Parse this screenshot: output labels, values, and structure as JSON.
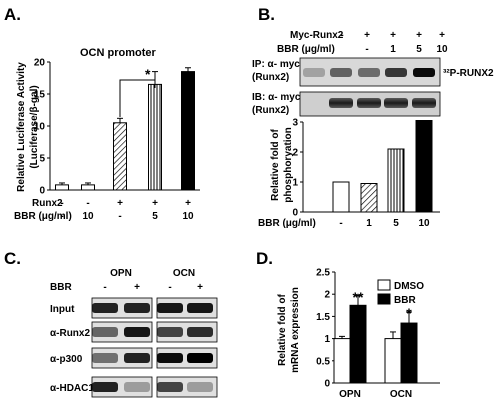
{
  "panels": {
    "A": {
      "label": "A.",
      "title": "OCN promoter",
      "ylabel_1": "Relative Luciferase Activity",
      "ylabel_2": "(Luciferase/β-gal)",
      "significance": "*",
      "row1_name": "Runx2",
      "row2_name": "BBR (μg/ml)",
      "row1_values": [
        "-",
        "-",
        "+",
        "+",
        "+"
      ],
      "row2_values": [
        "-",
        "10",
        "-",
        "5",
        "10"
      ]
    },
    "B": {
      "label": "B.",
      "header_rows": [
        {
          "name": "Myc-Runx2",
          "values": [
            "-",
            "+",
            "+",
            "+",
            "+"
          ]
        },
        {
          "name": "BBR (μg/ml)",
          "values": [
            "",
            "-",
            "1",
            "5",
            "10"
          ]
        }
      ],
      "blot1_label_1": "IP: α- myc",
      "blot1_label_2": "(Runx2)",
      "blot1_side_label": "³²P-RUNX2",
      "blot2_label_1": "IB: α- myc",
      "blot2_label_2": "(Runx2)",
      "ylabel_1": "Relative fold of",
      "ylabel_2": "phosphoryation",
      "xlabel_name": "BBR (μg/ml)",
      "x_values": [
        "-",
        "1",
        "5",
        "10"
      ]
    },
    "C": {
      "label": "C.",
      "col_groups": [
        "OPN",
        "OCN"
      ],
      "bbr_name": "BBR",
      "bbr_values": [
        "-",
        "+",
        "-",
        "+"
      ],
      "row_labels": [
        "Input",
        "α-Runx2",
        "α-p300",
        "α-HDAC1"
      ]
    },
    "D": {
      "label": "D.",
      "ylabel_1": "Relative fold of",
      "ylabel_2": "mRNA expression",
      "legend": [
        "DMSO",
        "BBR"
      ],
      "significance": [
        "**",
        "*"
      ],
      "categories": [
        "OPN",
        "OCN"
      ]
    }
  },
  "chart_data": [
    {
      "type": "bar",
      "panel": "A",
      "title": "OCN promoter",
      "ylabel": "Relative Luciferase Activity (Luciferase/β-gal)",
      "categories": [
        "-/-",
        "-/10",
        "+/-",
        "+/5",
        "+/10"
      ],
      "values": [
        0.8,
        0.8,
        10.5,
        16.5,
        18.5
      ],
      "errors": [
        0.3,
        0.3,
        0.7,
        2.0,
        0.6
      ],
      "fills": [
        "white",
        "white",
        "hatched",
        "vertical",
        "black"
      ],
      "ylim": [
        0,
        20
      ],
      "yticks": [
        0,
        5,
        10,
        15,
        20
      ]
    },
    {
      "type": "bar",
      "panel": "B",
      "ylabel": "Relative fold of phosphoryation",
      "categories": [
        "-",
        "1",
        "5",
        "10"
      ],
      "values": [
        1.0,
        0.95,
        2.1,
        3.05
      ],
      "fills": [
        "white",
        "hatched",
        "vertical",
        "black"
      ],
      "ylim": [
        0,
        3
      ],
      "yticks": [
        0,
        1,
        2,
        3
      ]
    },
    {
      "type": "bar",
      "panel": "D",
      "ylabel": "Relative fold of mRNA expression",
      "categories": [
        "OPN",
        "OCN"
      ],
      "series": [
        {
          "name": "DMSO",
          "values": [
            1.0,
            1.0
          ],
          "errors": [
            0.05,
            0.15
          ]
        },
        {
          "name": "BBR",
          "values": [
            1.75,
            1.35
          ],
          "errors": [
            0.22,
            0.25
          ]
        }
      ],
      "ylim": [
        0,
        2.5
      ],
      "yticks": [
        0,
        0.5,
        1,
        1.5,
        2,
        2.5
      ]
    }
  ]
}
